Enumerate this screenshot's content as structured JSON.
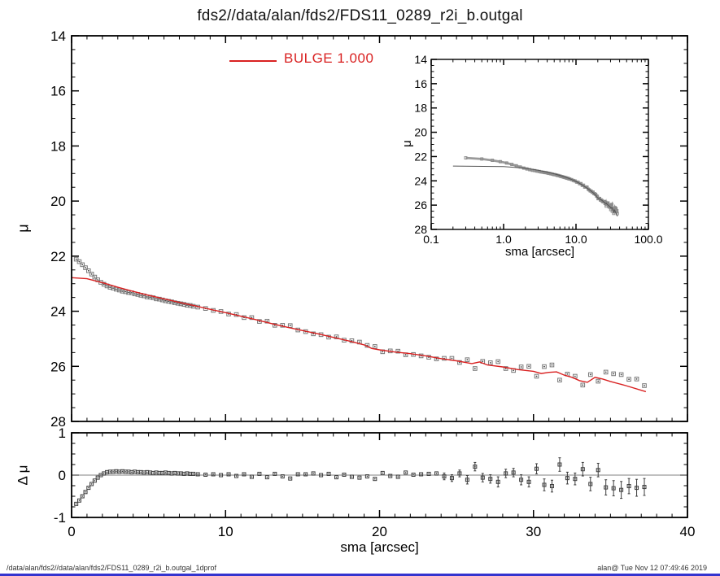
{
  "title": "fds2//data/alan/fds2/FDS11_0289_r2i_b.outgal",
  "legend": {
    "label": "BULGE  1.000",
    "color": "#d92121"
  },
  "footer": {
    "left": "/data/alan/fds2//data/alan/fds2/FDS11_0289_r2i_b.outgal_1dprof",
    "right": "alan@  Tue Nov 12 07:49:46 2019"
  },
  "colors": {
    "model_red": "#d92121",
    "data_gray": "#787878",
    "residual_dark": "#3c3c3c",
    "zero_line_gray": "#9a9a9a",
    "frame_black": "#000000",
    "bottom_bar_blue": "#3434cf"
  },
  "chart_data": {
    "type": "scatter",
    "panels": [
      {
        "name": "main",
        "xlim": [
          0,
          40
        ],
        "ylim": [
          14,
          28
        ],
        "xlabel": "",
        "ylabel": "μ",
        "x_major": [
          0,
          10,
          20,
          30,
          40
        ],
        "x_minor_step": 1,
        "x_labels_visible": false,
        "y_major": [
          14,
          16,
          18,
          20,
          22,
          24,
          26,
          28
        ],
        "y_major_labels": [
          "14",
          "16",
          "18",
          "20",
          "22",
          "24",
          "26",
          "28"
        ],
        "y_minor_step": 0.5,
        "series": [
          {
            "name": "observed-profile",
            "data": "obs",
            "style": "squares",
            "color": "#787878"
          },
          {
            "name": "bulge-model",
            "data": "model",
            "style": "line",
            "color": "#d92121"
          }
        ]
      },
      {
        "name": "inset",
        "xscale": "log",
        "xlim": [
          0.1,
          100
        ],
        "ylim": [
          14,
          28
        ],
        "xlabel": "sma [arcsec]",
        "ylabel": "μ",
        "x_major": [
          0.1,
          1,
          10,
          100
        ],
        "x_major_labels": [
          "0.1",
          "1.0",
          "10.0",
          "100.0"
        ],
        "y_major": [
          14,
          16,
          18,
          20,
          22,
          24,
          26,
          28
        ],
        "y_major_labels": [
          "14",
          "16",
          "18",
          "20",
          "22",
          "24",
          "26",
          "28"
        ],
        "y_minor_step": 0.5,
        "series": [
          {
            "name": "observed-profile",
            "data": "obs",
            "style": "band+squares",
            "color": "#8a8a8a"
          },
          {
            "name": "bulge-model",
            "data": "model",
            "style": "line",
            "color": "#555555"
          }
        ]
      },
      {
        "name": "residual",
        "xlim": [
          0,
          40
        ],
        "ylim": [
          1,
          -1
        ],
        "xlabel": "sma [arcsec]",
        "ylabel": "Δ μ",
        "x_major": [
          0,
          10,
          20,
          30,
          40
        ],
        "x_major_labels": [
          "0",
          "10",
          "20",
          "30",
          "40"
        ],
        "x_minor_step": 1,
        "y_major": [
          1,
          0,
          -1
        ],
        "y_major_labels": [
          "1",
          "0",
          "-1"
        ],
        "y_minor_step": 0.25,
        "zero_line": true,
        "series": [
          {
            "name": "residual-points",
            "data": "res",
            "style": "squares+err",
            "color": "#3c3c3c"
          }
        ]
      }
    ],
    "profile": {
      "sma": [
        0.3,
        0.5,
        0.7,
        0.9,
        1.1,
        1.3,
        1.5,
        1.7,
        1.9,
        2.1,
        2.3,
        2.5,
        2.7,
        2.9,
        3.1,
        3.3,
        3.5,
        3.7,
        3.9,
        4.1,
        4.3,
        4.5,
        4.7,
        4.9,
        5.1,
        5.3,
        5.5,
        5.7,
        5.9,
        6.1,
        6.3,
        6.5,
        6.7,
        6.9,
        7.1,
        7.3,
        7.5,
        7.7,
        7.9,
        8.2,
        8.7,
        9.2,
        9.7,
        10.2,
        10.7,
        11.2,
        11.7,
        12.2,
        12.7,
        13.2,
        13.7,
        14.2,
        14.7,
        15.2,
        15.7,
        16.2,
        16.7,
        17.2,
        17.7,
        18.2,
        18.7,
        19.2,
        19.7,
        20.2,
        20.7,
        21.2,
        21.7,
        22.2,
        22.7,
        23.2,
        23.7,
        24.2,
        24.7,
        25.2,
        25.7,
        26.2,
        26.7,
        27.2,
        27.7,
        28.2,
        28.7,
        29.2,
        29.7,
        30.2,
        30.7,
        31.2,
        31.7,
        32.2,
        32.7,
        33.2,
        33.7,
        34.2,
        34.7,
        35.2,
        35.7,
        36.2,
        36.7,
        37.2
      ],
      "mu_obs": [
        22.11,
        22.2,
        22.31,
        22.42,
        22.53,
        22.65,
        22.76,
        22.86,
        22.95,
        23.02,
        23.08,
        23.13,
        23.16,
        23.2,
        23.23,
        23.27,
        23.29,
        23.32,
        23.33,
        23.37,
        23.39,
        23.42,
        23.44,
        23.48,
        23.49,
        23.51,
        23.55,
        23.56,
        23.59,
        23.62,
        23.64,
        23.66,
        23.69,
        23.71,
        23.73,
        23.75,
        23.78,
        23.79,
        23.82,
        23.85,
        23.9,
        23.97,
        24.01,
        24.1,
        24.12,
        24.23,
        24.23,
        24.37,
        24.36,
        24.51,
        24.51,
        24.52,
        24.68,
        24.74,
        24.82,
        24.85,
        24.94,
        24.93,
        25.05,
        25.07,
        25.12,
        25.24,
        25.28,
        25.47,
        25.44,
        25.45,
        25.58,
        25.57,
        25.62,
        25.67,
        25.73,
        25.71,
        25.71,
        25.86,
        25.76,
        26.08,
        25.82,
        25.87,
        25.83,
        26.08,
        26.15,
        26.02,
        26.0,
        26.36,
        26.01,
        25.95,
        26.5,
        26.28,
        26.36,
        26.68,
        26.3,
        26.54,
        26.21,
        26.27,
        26.3,
        26.47,
        26.46,
        26.7
      ],
      "dmu": [
        -0.68,
        -0.6,
        -0.5,
        -0.4,
        -0.3,
        -0.21,
        -0.13,
        -0.06,
        0.0,
        0.04,
        0.07,
        0.08,
        0.08,
        0.09,
        0.08,
        0.09,
        0.08,
        0.08,
        0.07,
        0.08,
        0.07,
        0.07,
        0.06,
        0.07,
        0.06,
        0.05,
        0.06,
        0.05,
        0.05,
        0.06,
        0.05,
        0.04,
        0.05,
        0.04,
        0.04,
        0.03,
        0.04,
        0.03,
        0.03,
        0.02,
        0.01,
        0.02,
        0.0,
        0.02,
        -0.02,
        0.02,
        -0.04,
        0.03,
        -0.05,
        0.03,
        -0.03,
        -0.08,
        0.02,
        0.02,
        0.04,
        0.0,
        0.03,
        -0.05,
        0.01,
        -0.04,
        -0.06,
        -0.03,
        -0.09,
        0.05,
        -0.02,
        -0.04,
        0.06,
        0.01,
        0.02,
        0.03,
        0.04,
        -0.03,
        -0.07,
        0.04,
        -0.11,
        0.2,
        -0.06,
        -0.09,
        -0.16,
        0.04,
        0.06,
        -0.11,
        -0.16,
        0.15,
        -0.23,
        -0.26,
        0.25,
        -0.07,
        -0.09,
        0.14,
        -0.21,
        0.12,
        -0.29,
        -0.31,
        -0.35,
        -0.26,
        -0.3,
        -0.28
      ],
      "dmu_err_start_index": 71,
      "dmu_err_tail": [
        0.04,
        0.04,
        0.04,
        0.05,
        0.05,
        0.05,
        0.05,
        0.06,
        0.05,
        0.05,
        0.06,
        0.06,
        0.06,
        0.07,
        0.07,
        0.08,
        0.07,
        0.07,
        0.08,
        0.08,
        0.08,
        0.09,
        0.09,
        0.1,
        0.09,
        0.1,
        0.1
      ],
      "model_sma": [
        0,
        1,
        2,
        3,
        4,
        5,
        6,
        7,
        8,
        9,
        10,
        11,
        12,
        13,
        14,
        15,
        16,
        17,
        18,
        19,
        19.5,
        20,
        21,
        22,
        23,
        24,
        25,
        26,
        26.5,
        27,
        28,
        29,
        30,
        30.5,
        31,
        31.5,
        32,
        32.5,
        33,
        33.5,
        34,
        34.5,
        35,
        36,
        37.3
      ],
      "model_mu": [
        22.78,
        22.82,
        22.96,
        23.13,
        23.28,
        23.42,
        23.55,
        23.68,
        23.8,
        23.93,
        24.05,
        24.18,
        24.31,
        24.45,
        24.58,
        24.7,
        24.82,
        24.95,
        25.08,
        25.22,
        25.35,
        25.4,
        25.48,
        25.54,
        25.62,
        25.72,
        25.8,
        25.9,
        25.84,
        25.95,
        26.02,
        26.12,
        26.18,
        26.26,
        26.22,
        26.2,
        26.32,
        26.4,
        26.52,
        26.58,
        26.4,
        26.46,
        26.55,
        26.7,
        26.92
      ]
    }
  }
}
